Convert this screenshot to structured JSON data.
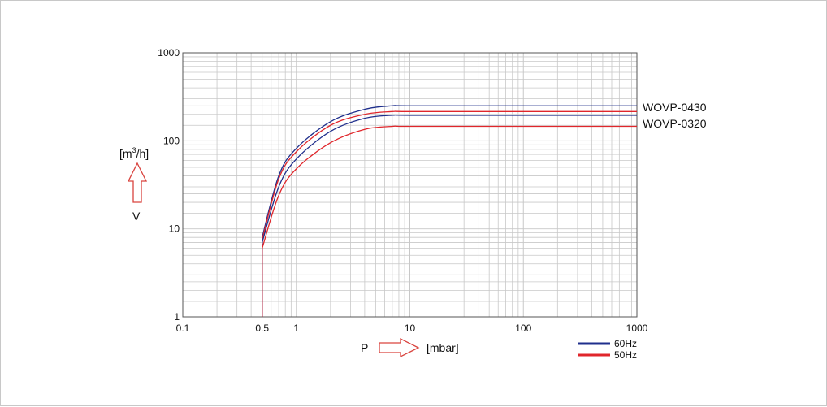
{
  "chart_data": {
    "type": "line",
    "title": "",
    "xlabel": "P",
    "xunit": "[mbar]",
    "ylabel": "V",
    "yunit": {
      "base": "[m",
      "sup": "3",
      "rest": "/h]"
    },
    "x_scale": "log",
    "y_scale": "log",
    "xlim": [
      0.1,
      1000
    ],
    "ylim": [
      1,
      1000
    ],
    "grid": true,
    "x_ticks": [
      "0.1",
      "0.5",
      "1",
      "10",
      "100",
      "1000"
    ],
    "y_ticks": [
      "1",
      "10",
      "100",
      "1000"
    ],
    "curve_labels": [
      "WOVP-0430",
      "WOVP-0320"
    ],
    "legend": {
      "placement": "bottom-right",
      "entries": [
        "60Hz",
        "50Hz"
      ]
    },
    "colors": {
      "60Hz": "#1f2f8c",
      "50Hz": "#e0262b",
      "grid": "#c8c8c8",
      "arrow": "#d9433e"
    },
    "series": [
      {
        "model": "WOVP-0430",
        "freq": "60Hz",
        "color": "#1f2f8c",
        "points": [
          [
            0.5,
            1
          ],
          [
            0.5,
            8
          ],
          [
            0.7,
            40
          ],
          [
            1,
            82
          ],
          [
            2,
            165
          ],
          [
            4,
            228
          ],
          [
            7,
            250
          ],
          [
            10,
            250
          ],
          [
            100,
            250
          ],
          [
            1000,
            250
          ]
        ]
      },
      {
        "model": "WOVP-0430",
        "freq": "50Hz",
        "color": "#e0262b",
        "points": [
          [
            0.5,
            1
          ],
          [
            0.5,
            7.5
          ],
          [
            0.7,
            37
          ],
          [
            1,
            75
          ],
          [
            2,
            150
          ],
          [
            4,
            200
          ],
          [
            7,
            215
          ],
          [
            10,
            215
          ],
          [
            100,
            215
          ],
          [
            1000,
            215
          ]
        ]
      },
      {
        "model": "WOVP-0320",
        "freq": "60Hz",
        "color": "#1f2f8c",
        "points": [
          [
            0.5,
            1
          ],
          [
            0.5,
            7
          ],
          [
            0.7,
            30
          ],
          [
            1,
            62
          ],
          [
            2,
            128
          ],
          [
            4,
            180
          ],
          [
            7,
            195
          ],
          [
            10,
            195
          ],
          [
            100,
            195
          ],
          [
            1000,
            195
          ]
        ]
      },
      {
        "model": "WOVP-0320",
        "freq": "50Hz",
        "color": "#e0262b",
        "points": [
          [
            0.5,
            1
          ],
          [
            0.5,
            6
          ],
          [
            0.7,
            24
          ],
          [
            1,
            48
          ],
          [
            2,
            95
          ],
          [
            4,
            135
          ],
          [
            7,
            146
          ],
          [
            10,
            146
          ],
          [
            100,
            146
          ],
          [
            1000,
            146
          ]
        ]
      }
    ]
  }
}
